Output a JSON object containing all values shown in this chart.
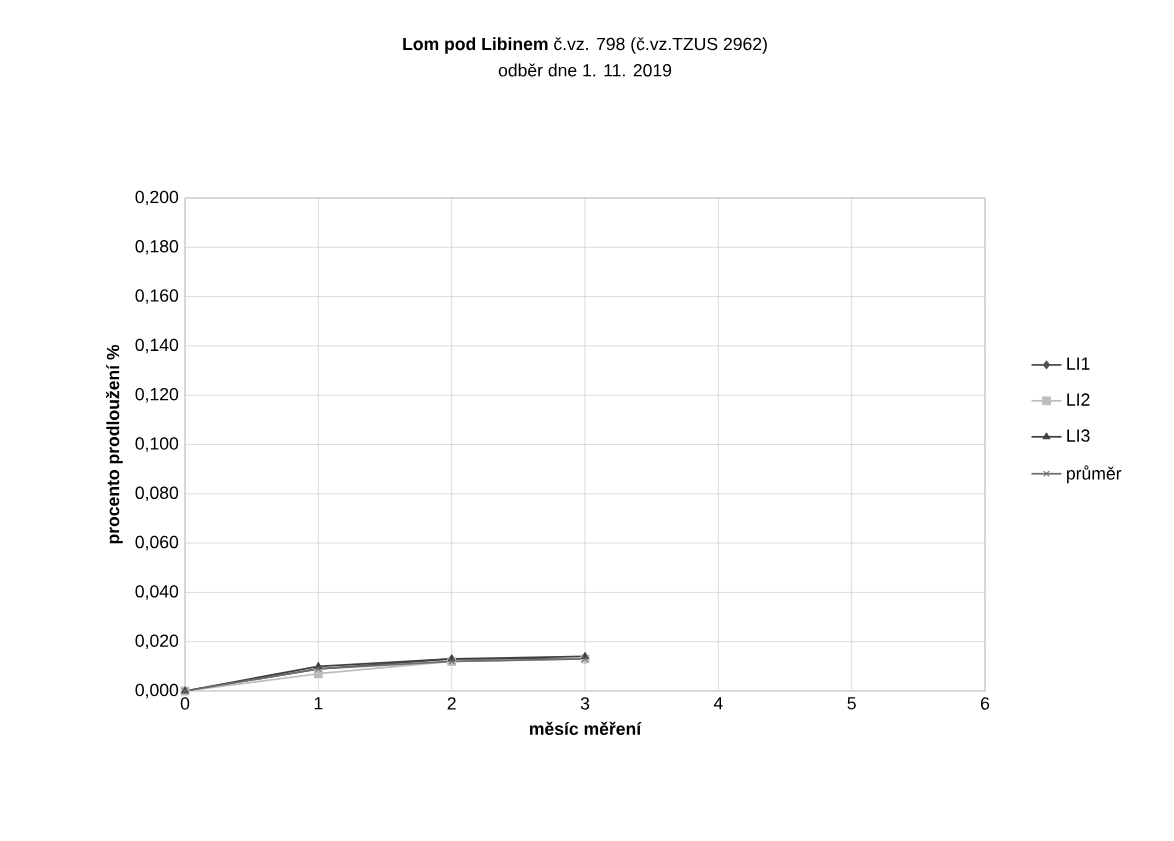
{
  "chart_data": {
    "type": "line",
    "title": "**Lom pod Libinem** č.vz. 798 (č.vz.TZUS  2962)",
    "subtitle": "odběr dne  1. 11. 2019",
    "xlabel": "měsíc  měření",
    "ylabel": "procento prodloužení %",
    "x": [
      0,
      1,
      2,
      3
    ],
    "series": [
      {
        "name": "LI1",
        "color": "#505050",
        "marker": "diamond",
        "values": [
          0,
          0.009,
          0.013,
          0.013
        ]
      },
      {
        "name": "LI2",
        "color": "#bdbdbd",
        "marker": "square",
        "values": [
          0,
          0.007,
          0.012,
          0.013
        ]
      },
      {
        "name": "LI3",
        "color": "#404040",
        "marker": "triangle",
        "values": [
          0,
          0.01,
          0.013,
          0.014
        ]
      },
      {
        "name": "průměr",
        "color": "#6e6e6e",
        "marker": "cross",
        "values": [
          0,
          0.009,
          0.012,
          0.013
        ]
      }
    ],
    "xlim": [
      0,
      6
    ],
    "xticks": [
      0,
      1,
      2,
      3,
      4,
      5,
      6
    ],
    "ylim": [
      0,
      0.2
    ],
    "yticks": [
      {
        "value": 0,
        "label": "0,000"
      },
      {
        "value": 0.02,
        "label": "0,020"
      },
      {
        "value": 0.04,
        "label": "0,040"
      },
      {
        "value": 0.06,
        "label": "0,060"
      },
      {
        "value": 0.08,
        "label": "0,080"
      },
      {
        "value": 0.1,
        "label": "0,100"
      },
      {
        "value": 0.12,
        "label": "0,120"
      },
      {
        "value": 0.14,
        "label": "0,140"
      },
      {
        "value": 0.16,
        "label": "0,160"
      },
      {
        "value": 0.18,
        "label": "0,180"
      },
      {
        "value": 0.2,
        "label": "0,200"
      }
    ],
    "grid": true,
    "legend": "right"
  }
}
